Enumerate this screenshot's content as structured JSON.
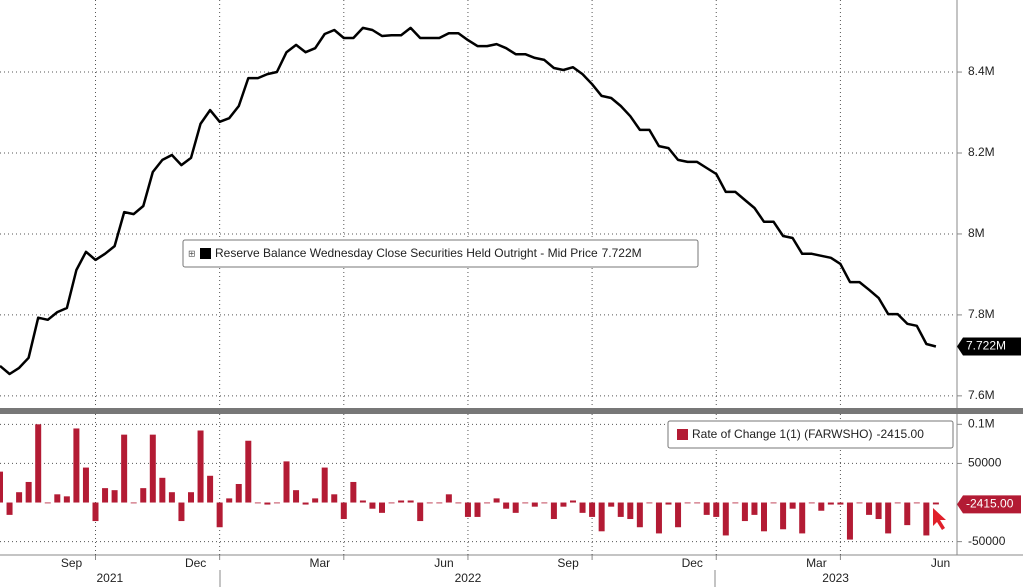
{
  "chart_data": [
    {
      "type": "line",
      "series": [
        {
          "name": "Reserve Balance Wednesday Close Securities Held Outright - Mid Price",
          "color": "#000000",
          "last_label": "7.722M",
          "values": [
            7.674,
            7.654,
            7.669,
            7.694,
            7.793,
            7.788,
            7.807,
            7.817,
            7.911,
            7.956,
            7.936,
            7.951,
            7.97,
            8.054,
            8.049,
            8.069,
            8.153,
            8.183,
            8.195,
            8.17,
            8.188,
            8.272,
            8.306,
            8.277,
            8.286,
            8.316,
            8.385,
            8.385,
            8.395,
            8.4,
            8.449,
            8.467,
            8.449,
            8.459,
            8.494,
            8.504,
            8.484,
            8.484,
            8.509,
            8.504,
            8.489,
            8.491,
            8.491,
            8.509,
            8.484,
            8.484,
            8.484,
            8.496,
            8.496,
            8.479,
            8.464,
            8.464,
            8.469,
            8.459,
            8.444,
            8.444,
            8.435,
            8.43,
            8.41,
            8.405,
            8.412,
            8.395,
            8.37,
            8.341,
            8.336,
            8.316,
            8.291,
            8.257,
            8.257,
            8.217,
            8.212,
            8.183,
            8.178,
            8.178,
            8.163,
            8.148,
            8.104,
            8.104,
            8.084,
            8.064,
            8.03,
            8.03,
            7.995,
            7.99,
            7.951,
            7.951,
            7.946,
            7.941,
            7.926,
            7.881,
            7.881,
            7.862,
            7.842,
            7.802,
            7.802,
            7.778,
            7.773,
            7.728,
            7.722
          ]
        }
      ],
      "xlim": [
        0,
        100
      ],
      "ylim": [
        7.57,
        8.578
      ],
      "yticks": [
        {
          "value": 7.6,
          "label": "7.6M"
        },
        {
          "value": 7.8,
          "label": "7.8M"
        },
        {
          "value": 8,
          "label": "8M"
        },
        {
          "value": 8.2,
          "label": "8.2M"
        },
        {
          "value": 8.4,
          "label": "8.4M"
        }
      ],
      "grid": true
    },
    {
      "type": "bar",
      "series": [
        {
          "name": "Rate of Change 1(1) (FARWSHO)",
          "color": "#b31b34",
          "last_label": "-2415.00",
          "values": [
            39500,
            -15800,
            13200,
            26300,
            100000,
            0,
            10500,
            7900,
            94700,
            44700,
            -23700,
            18400,
            15800,
            86800,
            0,
            18400,
            86800,
            31600,
            13200,
            -23700,
            13200,
            92100,
            34200,
            -31600,
            5300,
            23700,
            79000,
            0,
            -2600,
            0,
            52600,
            15800,
            -2600,
            5300,
            44700,
            10500,
            -21100,
            26300,
            2600,
            -7900,
            -13200,
            0,
            2600,
            2600,
            -23700,
            0,
            0,
            10500,
            0,
            -18400,
            -18400,
            0,
            5300,
            -7900,
            -13200,
            0,
            -5300,
            0,
            -21100,
            -5300,
            2600,
            -13200,
            -18400,
            -36800,
            -5300,
            -18400,
            -21100,
            -31600,
            0,
            -39500,
            -2600,
            -31600,
            0,
            0,
            -15800,
            -18400,
            -42100,
            0,
            -23700,
            -15800,
            -36800,
            0,
            -34200,
            -7900,
            -39500,
            0,
            -10500,
            -2600,
            -2600,
            -47400,
            0,
            -15800,
            -21100,
            -39500,
            0,
            -28900,
            0,
            -42100,
            -2415
          ]
        }
      ],
      "xlim": [
        0,
        100
      ],
      "xticks": [
        {
          "value": 10,
          "label": "Sep"
        },
        {
          "value": 23,
          "label": "Dec"
        },
        {
          "value": 36,
          "label": "Mar"
        },
        {
          "value": 49,
          "label": "Jun"
        },
        {
          "value": 62,
          "label": "Sep"
        },
        {
          "value": 75,
          "label": "Dec"
        },
        {
          "value": 88,
          "label": "Mar"
        },
        {
          "value": 101,
          "label": "Jun"
        }
      ],
      "x_year_labels": [
        {
          "value": 11.5,
          "label": "2021"
        },
        {
          "value": 49,
          "label": "2022"
        },
        {
          "value": 87.5,
          "label": "2023"
        }
      ],
      "ylim": [
        -67100,
        113200
      ],
      "yticks": [
        {
          "value": 100000,
          "label": "0.1M"
        },
        50000,
        -50000
      ],
      "grid": true
    }
  ]
}
